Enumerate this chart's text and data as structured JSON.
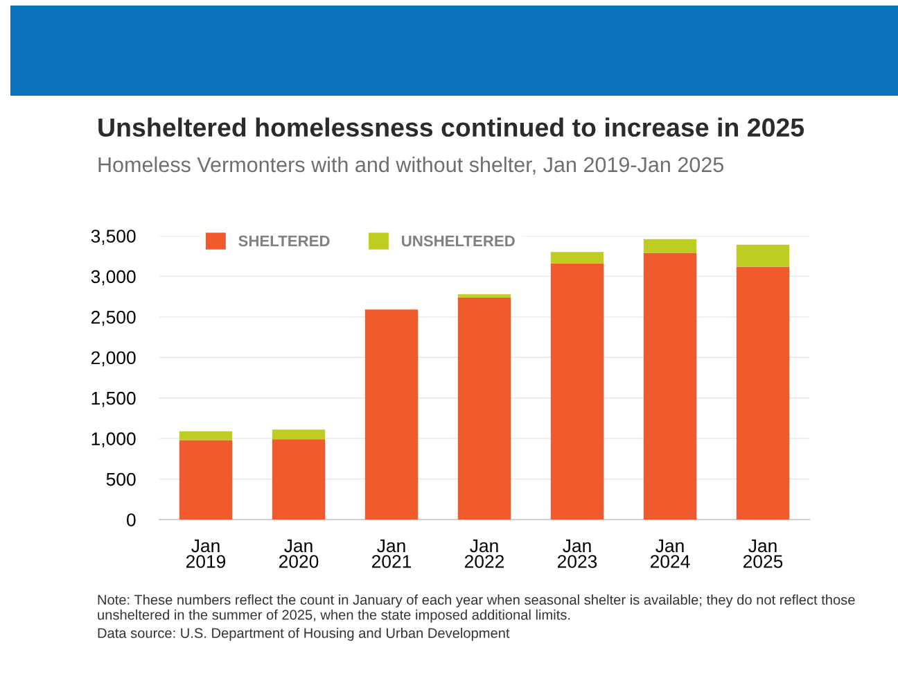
{
  "chart_data": {
    "type": "bar",
    "title": "Unsheltered homelessness continued to increase in 2025",
    "subtitle": "Homeless Vermonters with and without shelter, Jan 2019-Jan 2025",
    "categories": [
      "Jan\n2019",
      "Jan\n2020",
      "Jan\n2021",
      "Jan\n2022",
      "Jan\n2023",
      "Jan\n2024",
      "Jan\n2025"
    ],
    "series": [
      {
        "name": "SHELTERED",
        "color": "#f05a2c",
        "values": [
          980,
          990,
          2590,
          2740,
          3160,
          3290,
          3120
        ]
      },
      {
        "name": "UNSHELTERED",
        "color": "#bfcd22",
        "values": [
          110,
          120,
          0,
          40,
          140,
          170,
          270
        ]
      }
    ],
    "stacked": true,
    "ylim": [
      0,
      3500
    ],
    "yticks": [
      0,
      {
        "value": 500,
        "label": "500"
      },
      {
        "value": 1000,
        "label": "1,000"
      },
      {
        "value": 1500,
        "label": "1,500"
      },
      {
        "value": 2000,
        "label": "2,000"
      },
      {
        "value": 2500,
        "label": "2,500"
      },
      {
        "value": 3000,
        "label": "3,000"
      },
      {
        "value": 3500,
        "label": "3,500"
      }
    ],
    "grid": "y",
    "legend": "top left",
    "annotations": [
      "Note: These numbers reflect the count in January of each year when seasonal shelter is available; they do not reflect those unsheltered in the summer of 2025, when the state imposed additional limits.",
      "Data source: U.S. Department of Housing and Urban Development"
    ]
  }
}
